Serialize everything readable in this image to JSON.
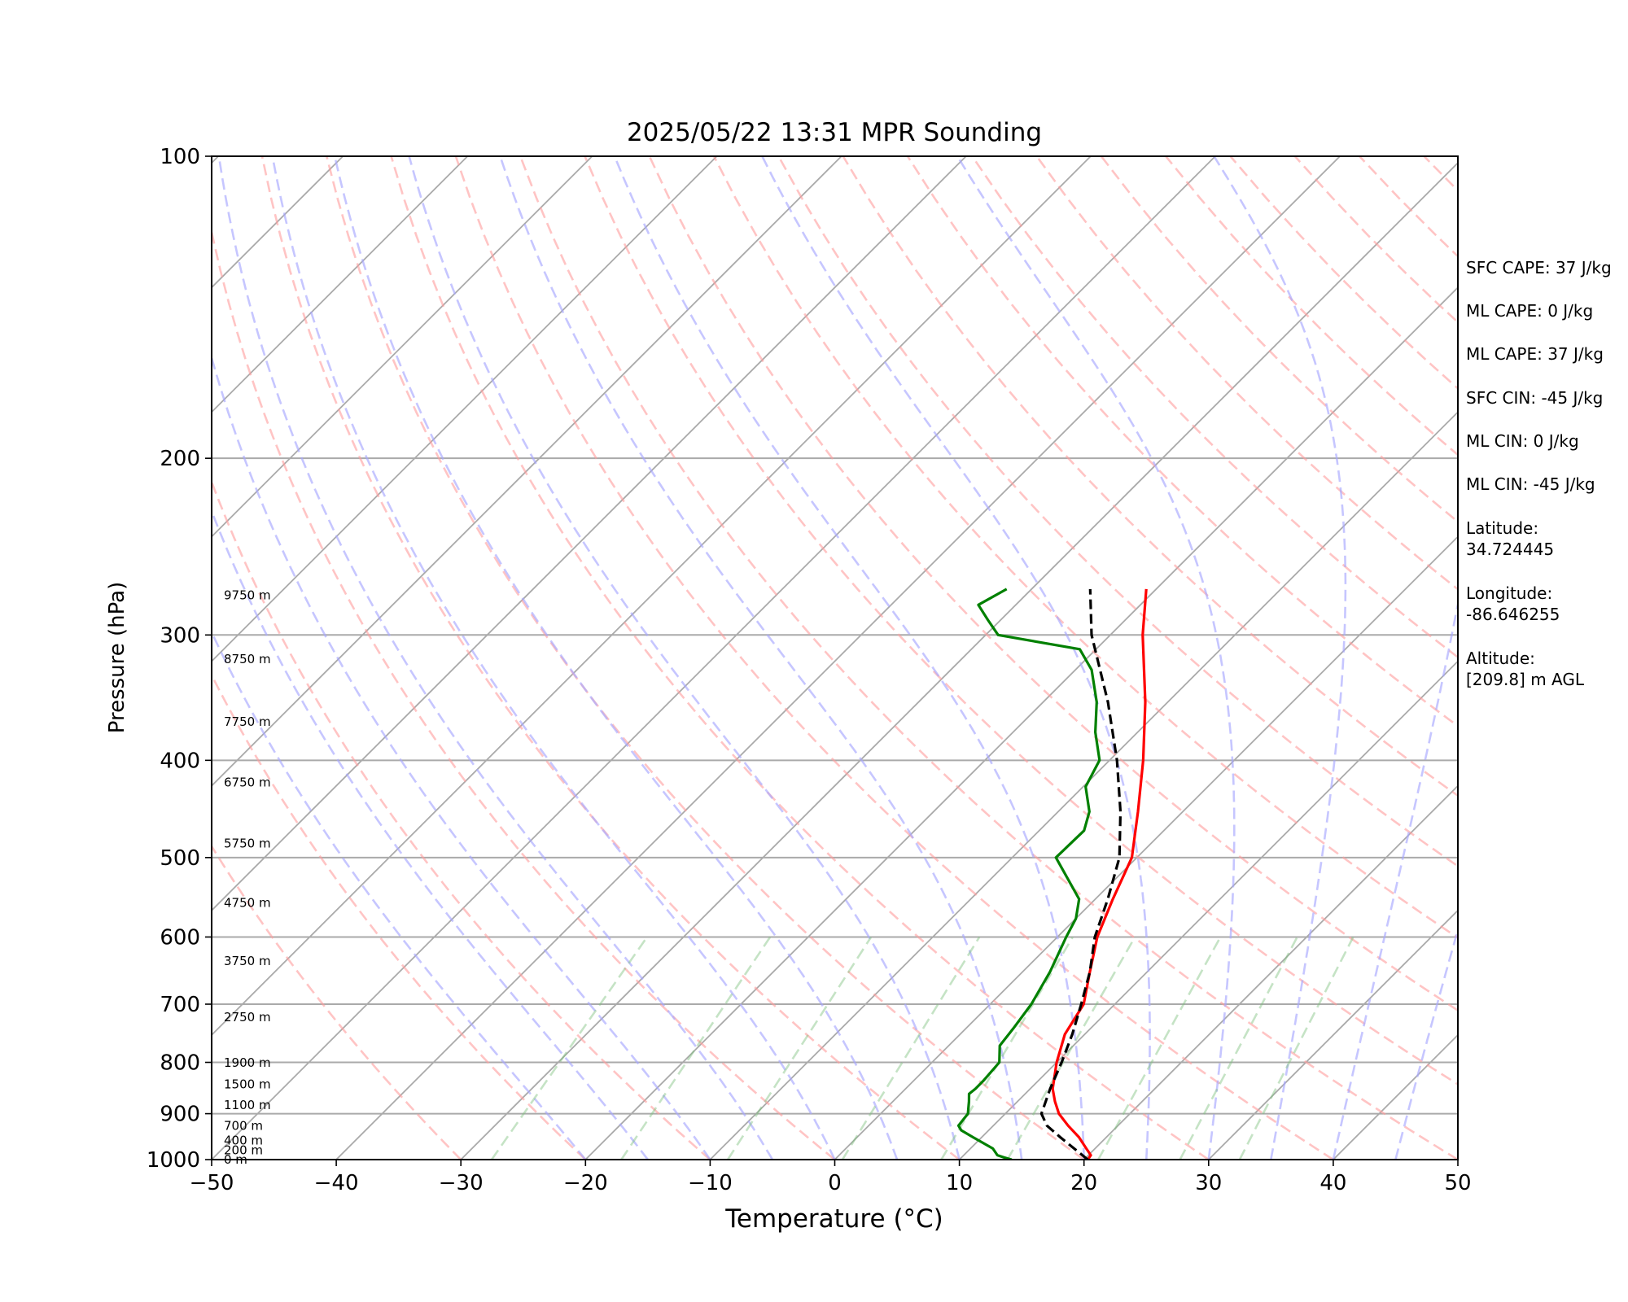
{
  "chart_data": {
    "type": "line",
    "title": "2025/05/22 13:31 MPR Sounding",
    "xlabel": "Temperature (°C)",
    "ylabel": "Pressure (hPa)",
    "xlim": [
      -50,
      50
    ],
    "ylim": [
      1000,
      100
    ],
    "y_scale": "log",
    "skew": "skew-T",
    "grid": true,
    "x_ticks": [
      "−50",
      "−40",
      "−30",
      "−20",
      "−10",
      "0",
      "10",
      "20",
      "30",
      "40",
      "50"
    ],
    "y_ticks": [
      "100",
      "200",
      "300",
      "400",
      "500",
      "600",
      "700",
      "800",
      "900",
      "1000"
    ],
    "height_labels": [
      {
        "text": "0 m",
        "p": 1000
      },
      {
        "text": "200 m",
        "p": 979
      },
      {
        "text": "400 m",
        "p": 957
      },
      {
        "text": "700 m",
        "p": 925
      },
      {
        "text": "1100 m",
        "p": 882
      },
      {
        "text": "1500 m",
        "p": 841
      },
      {
        "text": "1900 m",
        "p": 801
      },
      {
        "text": "2750 m",
        "p": 721
      },
      {
        "text": "3750 m",
        "p": 634
      },
      {
        "text": "4750 m",
        "p": 555
      },
      {
        "text": "5750 m",
        "p": 484
      },
      {
        "text": "6750 m",
        "p": 421
      },
      {
        "text": "7750 m",
        "p": 366
      },
      {
        "text": "8750 m",
        "p": 317
      },
      {
        "text": "9750 m",
        "p": 274
      }
    ],
    "series": [
      {
        "color": "#ff0000",
        "style": "solid",
        "points": [
          {
            "p": 1000,
            "t": 20.3
          },
          {
            "p": 990,
            "t": 20.2
          },
          {
            "p": 975,
            "t": 19.3
          },
          {
            "p": 950,
            "t": 17.8
          },
          {
            "p": 925,
            "t": 16.0
          },
          {
            "p": 900,
            "t": 14.3
          },
          {
            "p": 875,
            "t": 13.0
          },
          {
            "p": 850,
            "t": 11.8
          },
          {
            "p": 800,
            "t": 10.0
          },
          {
            "p": 750,
            "t": 8.4
          },
          {
            "p": 700,
            "t": 7.5
          },
          {
            "p": 650,
            "t": 5.4
          },
          {
            "p": 600,
            "t": 3.2
          },
          {
            "p": 550,
            "t": 1.4
          },
          {
            "p": 500,
            "t": -0.4
          },
          {
            "p": 450,
            "t": -3.6
          },
          {
            "p": 400,
            "t": -7.3
          },
          {
            "p": 350,
            "t": -11.8
          },
          {
            "p": 300,
            "t": -17.4
          },
          {
            "p": 270,
            "t": -20.8
          }
        ]
      },
      {
        "color": "#008000",
        "style": "solid",
        "points": [
          {
            "p": 1000,
            "t": 14.2
          },
          {
            "p": 995,
            "t": 13.4
          },
          {
            "p": 990,
            "t": 12.7
          },
          {
            "p": 975,
            "t": 11.8
          },
          {
            "p": 950,
            "t": 9.3
          },
          {
            "p": 935,
            "t": 7.8
          },
          {
            "p": 925,
            "t": 7.2
          },
          {
            "p": 900,
            "t": 7.0
          },
          {
            "p": 875,
            "t": 6.1
          },
          {
            "p": 860,
            "t": 5.5
          },
          {
            "p": 850,
            "t": 5.6
          },
          {
            "p": 835,
            "t": 5.6
          },
          {
            "p": 800,
            "t": 5.4
          },
          {
            "p": 770,
            "t": 4.1
          },
          {
            "p": 740,
            "t": 3.8
          },
          {
            "p": 700,
            "t": 3.3
          },
          {
            "p": 650,
            "t": 2.2
          },
          {
            "p": 600,
            "t": 0.7
          },
          {
            "p": 575,
            "t": 0.0
          },
          {
            "p": 550,
            "t": -1.3
          },
          {
            "p": 500,
            "t": -6.5
          },
          {
            "p": 470,
            "t": -6.4
          },
          {
            "p": 450,
            "t": -7.5
          },
          {
            "p": 425,
            "t": -9.8
          },
          {
            "p": 400,
            "t": -10.8
          },
          {
            "p": 375,
            "t": -13.4
          },
          {
            "p": 350,
            "t": -15.7
          },
          {
            "p": 325,
            "t": -18.7
          },
          {
            "p": 310,
            "t": -21.3
          },
          {
            "p": 300,
            "t": -29.0
          },
          {
            "p": 290,
            "t": -31.0
          },
          {
            "p": 280,
            "t": -33.0
          },
          {
            "p": 270,
            "t": -32.0
          }
        ]
      },
      {
        "color": "#000000",
        "style": "dashed",
        "points": [
          {
            "p": 1000,
            "t": 20.3
          },
          {
            "p": 950,
            "t": 16.3
          },
          {
            "p": 925,
            "t": 14.3
          },
          {
            "p": 900,
            "t": 12.9
          },
          {
            "p": 850,
            "t": 11.6
          },
          {
            "p": 800,
            "t": 10.4
          },
          {
            "p": 750,
            "t": 9.0
          },
          {
            "p": 700,
            "t": 7.3
          },
          {
            "p": 650,
            "t": 5.4
          },
          {
            "p": 600,
            "t": 3.0
          },
          {
            "p": 550,
            "t": 1.0
          },
          {
            "p": 500,
            "t": -1.4
          },
          {
            "p": 450,
            "t": -5.0
          },
          {
            "p": 400,
            "t": -9.4
          },
          {
            "p": 350,
            "t": -14.8
          },
          {
            "p": 300,
            "t": -21.5
          },
          {
            "p": 270,
            "t": -25.3
          }
        ]
      }
    ]
  },
  "side_panel": {
    "sfc_cape": "SFC CAPE: 37 J/kg",
    "ml_cape_1": "ML CAPE: 0 J/kg",
    "ml_cape_2": "ML CAPE: 37 J/kg",
    "sfc_cin": "SFC CIN: -45 J/kg",
    "ml_cin_1": "ML CIN: 0 J/kg",
    "ml_cin_2": "ML CIN: -45 J/kg",
    "latitude_label": "Latitude:",
    "latitude_value": "34.724445",
    "longitude_label": "Longitude:",
    "longitude_value": "-86.646255",
    "altitude_label": "Altitude:",
    "altitude_value": "[209.8] m AGL"
  }
}
